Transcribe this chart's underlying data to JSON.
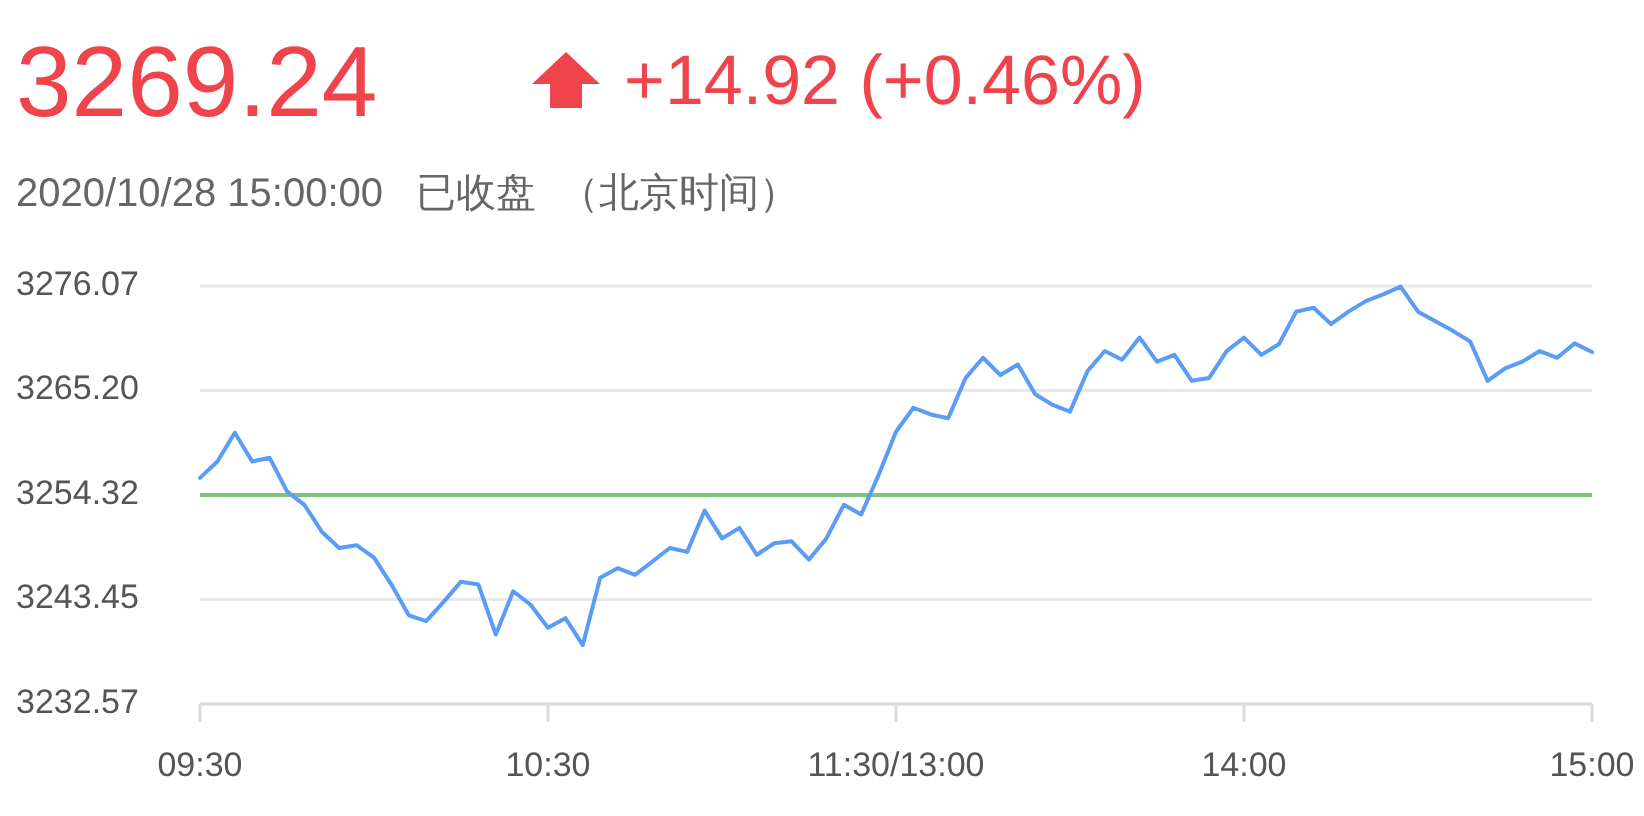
{
  "chart_data": {
    "type": "line",
    "title": "3269.24",
    "subtitle": "2020/10/28 15:00:00   已收盘  （北京时间）",
    "annotations": [
      "+14.92 (+0.46%)"
    ],
    "categories": [
      "09:30",
      null,
      null,
      null,
      null,
      null,
      null,
      null,
      null,
      null,
      null,
      null,
      null,
      null,
      null,
      null,
      null,
      null,
      null,
      null,
      "10:30",
      null,
      null,
      null,
      null,
      null,
      null,
      null,
      null,
      null,
      null,
      null,
      null,
      null,
      null,
      null,
      null,
      null,
      null,
      null,
      "11:30/13:00",
      null,
      null,
      null,
      null,
      null,
      null,
      null,
      null,
      null,
      null,
      null,
      null,
      null,
      null,
      null,
      null,
      null,
      null,
      null,
      "14:00",
      null,
      null,
      null,
      null,
      null,
      null,
      null,
      null,
      null,
      null,
      null,
      null,
      null,
      null,
      null,
      null,
      null,
      null,
      null,
      "15:00"
    ],
    "series": [
      {
        "color": "#5b9cf6",
        "values": [
          3256.1,
          3257.8,
          3260.8,
          3257.8,
          3258.2,
          3254.7,
          3253.3,
          3250.5,
          3248.8,
          3249.1,
          3247.8,
          3245.0,
          3241.8,
          3241.2,
          3243.2,
          3245.3,
          3245.0,
          3239.8,
          3244.3,
          3242.9,
          3240.5,
          3241.5,
          3238.7,
          3245.7,
          3246.7,
          3246.0,
          3247.4,
          3248.8,
          3248.4,
          3252.7,
          3249.8,
          3250.9,
          3248.1,
          3249.3,
          3249.5,
          3247.6,
          3249.8,
          3253.3,
          3252.3,
          3256.4,
          3260.9,
          3263.4,
          3262.7,
          3262.3,
          3266.5,
          3268.6,
          3266.8,
          3267.9,
          3264.8,
          3263.7,
          3263.0,
          3267.2,
          3269.3,
          3268.4,
          3270.7,
          3268.2,
          3268.9,
          3266.2,
          3266.5,
          3269.3,
          3270.7,
          3268.9,
          3270.0,
          3273.4,
          3273.8,
          3272.1,
          3273.4,
          3274.5,
          3275.2,
          3276.0,
          3273.4,
          3272.4,
          3271.4,
          3270.3,
          3266.2,
          3267.5,
          3268.2,
          3269.3,
          3268.6,
          3270.1,
          3269.2
        ]
      }
    ],
    "ylim": [
      3232.57,
      3276.07
    ],
    "yticks": [
      {
        "value": 3232.57,
        "label": "3232.57"
      },
      {
        "value": 3243.45,
        "label": "3243.45"
      },
      {
        "value": 3254.32,
        "label": "3254.32"
      },
      {
        "value": 3265.2,
        "label": "3265.20"
      },
      {
        "value": 3276.07,
        "label": "3276.07"
      }
    ],
    "ref_lines": [
      {
        "axis": "y",
        "value": 3254.32,
        "color": "#7cc67c"
      }
    ],
    "grid": "y",
    "marker": "none",
    "line_style": "solid"
  }
}
